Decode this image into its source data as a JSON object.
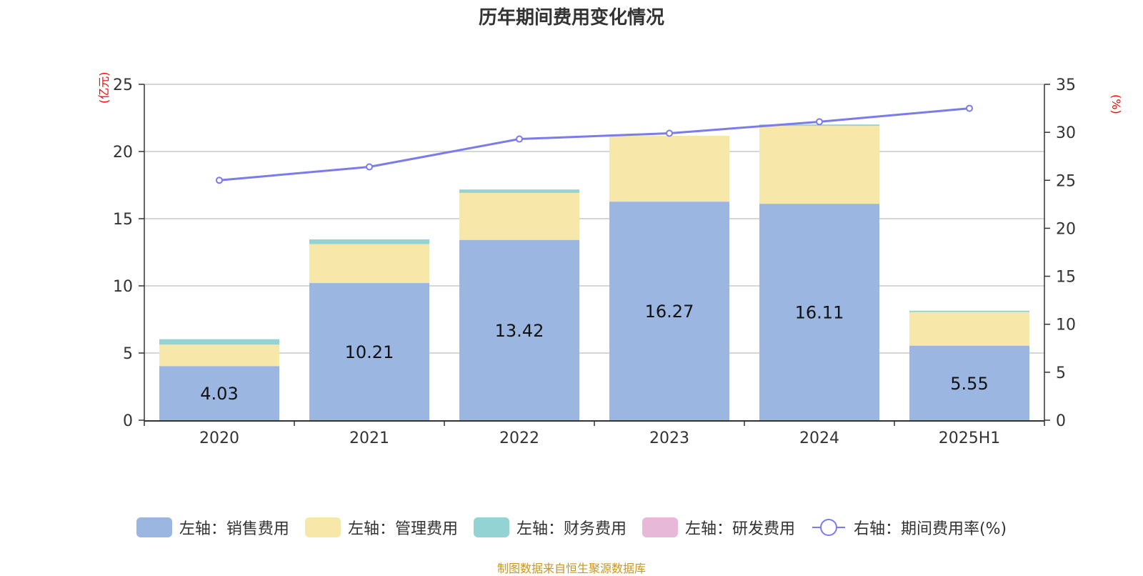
{
  "chart_data": {
    "type": "bar",
    "title": "历年期间费用变化情况",
    "categories": [
      "2020",
      "2021",
      "2022",
      "2023",
      "2024",
      "2025H1"
    ],
    "left_axis": {
      "unit_label": "(亿元)",
      "ylim": [
        0,
        25
      ],
      "ticks": [
        "0",
        "5",
        "10",
        "15",
        "20",
        "25"
      ]
    },
    "right_axis": {
      "unit_label": "(%)",
      "ylim": [
        0,
        35
      ],
      "ticks": [
        "0",
        "5",
        "10",
        "15",
        "20",
        "25",
        "30",
        "35"
      ]
    },
    "series": [
      {
        "name": "左轴：销售费用",
        "type": "bar",
        "axis": "left",
        "color": "#9ab6e1",
        "values": [
          4.03,
          10.21,
          13.42,
          16.27,
          16.11,
          5.55
        ],
        "labels": [
          "4.03",
          "10.21",
          "13.42",
          "16.27",
          "16.11",
          "5.55"
        ]
      },
      {
        "name": "左轴：管理费用",
        "type": "bar",
        "axis": "left",
        "color": "#f7e7a9",
        "values": [
          1.6,
          2.9,
          3.5,
          4.9,
          5.8,
          2.5
        ]
      },
      {
        "name": "左轴：财务费用",
        "type": "bar",
        "axis": "left",
        "color": "#93d3d3",
        "values": [
          0.4,
          0.35,
          0.25,
          0.0,
          0.1,
          0.1
        ]
      },
      {
        "name": "左轴：研发费用",
        "type": "bar",
        "axis": "left",
        "color": "#e8b8d8",
        "values": [
          0,
          0,
          0,
          0,
          0,
          0
        ]
      },
      {
        "name": "右轴：期间费用率(%)",
        "type": "line",
        "axis": "right",
        "color": "#7b7bea",
        "values": [
          25.0,
          26.4,
          29.3,
          29.9,
          31.1,
          32.5
        ]
      }
    ],
    "grid": true,
    "legend_position": "bottom"
  },
  "source_note": "制图数据来自恒生聚源数据库"
}
